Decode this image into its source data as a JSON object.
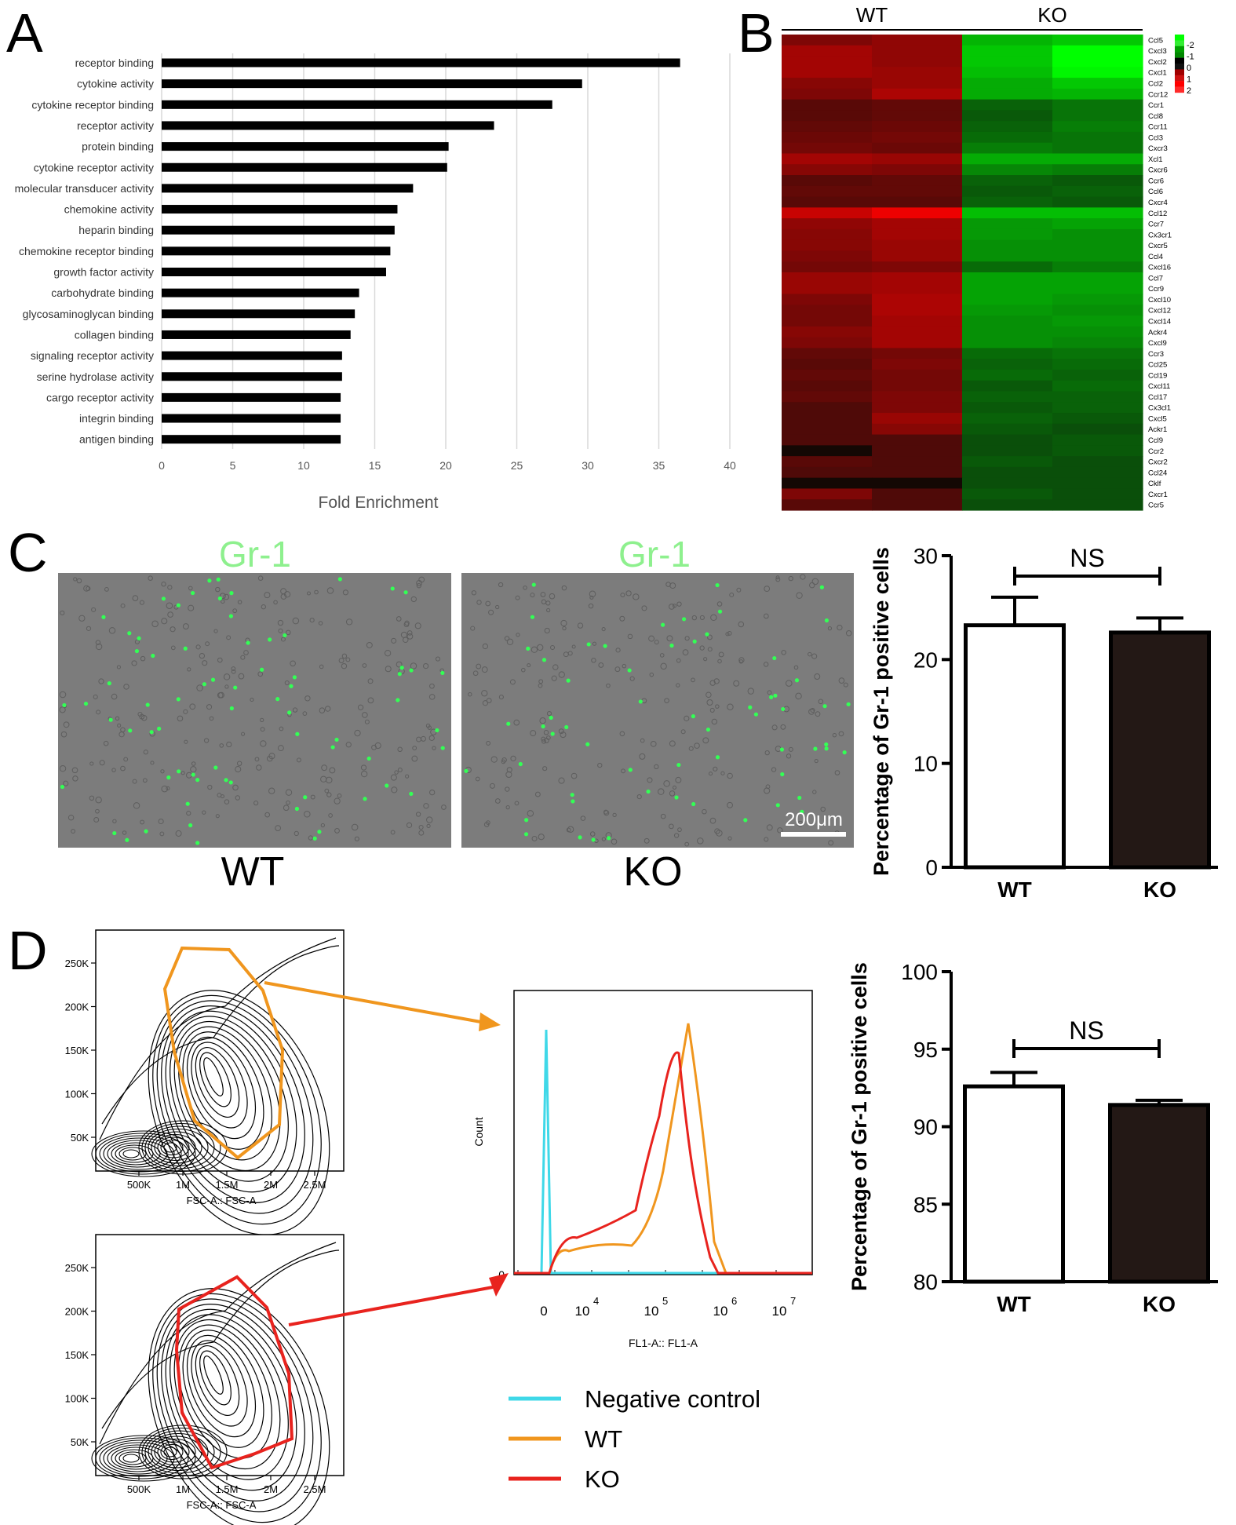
{
  "panel_labels": {
    "a": "A",
    "b": "B",
    "c": "C",
    "d": "D"
  },
  "colors": {
    "green_label": "#8ef08e",
    "micro_bg": "#7c7c7c",
    "bar_dark": "#231815",
    "neg_control": "#3fd8e8",
    "wt": "#f0961e",
    "ko": "#e8231e",
    "heat_low": "#00ff00",
    "heat_mid": "#000000",
    "heat_high": "#ff0000"
  },
  "chart_data": [
    {
      "id": "A",
      "type": "bar",
      "orientation": "horizontal",
      "categories": [
        "receptor binding",
        "cytokine activity",
        "cytokine receptor binding",
        "receptor activity",
        "protein binding",
        "cytokine receptor activity",
        "molecular transducer activity",
        "chemokine activity",
        "heparin binding",
        "chemokine receptor binding",
        "growth factor activity",
        "carbohydrate binding",
        "glycosaminoglycan binding",
        "collagen binding",
        "signaling receptor activity",
        "serine hydrolase activity",
        "cargo receptor activity",
        "integrin binding",
        "antigen binding"
      ],
      "values": [
        36.5,
        29.6,
        27.5,
        23.4,
        20.2,
        20.1,
        17.7,
        16.6,
        16.4,
        16.1,
        15.8,
        13.9,
        13.6,
        13.3,
        12.7,
        12.7,
        12.6,
        12.6,
        12.6
      ],
      "xlabel": "Fold Enrichment",
      "xlim": [
        0,
        40
      ],
      "xticks": [
        "0",
        "5",
        "10",
        "15",
        "20",
        "25",
        "30",
        "35",
        "40"
      ],
      "grid": true
    },
    {
      "id": "B",
      "type": "heatmap",
      "group_labels": [
        "WT",
        "KO"
      ],
      "rows": [
        "Ccl5",
        "Cxcl3",
        "Cxcl2",
        "Cxcl1",
        "Ccl2",
        "Ccr12",
        "Ccr1",
        "Ccl8",
        "Ccr11",
        "Ccl3",
        "Cxcr3",
        "Xcl1",
        "Cxcr6",
        "Ccr6",
        "Ccl6",
        "Cxcr4",
        "Ccl12",
        "Ccr7",
        "Cx3cr1",
        "Cxcr5",
        "Ccl4",
        "Cxcl16",
        "Ccl7",
        "Ccr9",
        "Cxcl10",
        "Cxcl12",
        "Cxcl14",
        "Ackr4",
        "Cxcl9",
        "Ccr3",
        "Ccl25",
        "Ccl19",
        "Cxcl11",
        "Ccl17",
        "Cx3cl1",
        "Cxcl5",
        "Ackr1",
        "Ccl9",
        "Ccr2",
        "Cxcr2",
        "Ccl24",
        "Cklf",
        "Cxcr1",
        "Ccr5"
      ],
      "legend_ticks": [
        "-2",
        "-1",
        "0",
        "1",
        "2"
      ],
      "values": [
        [
          0.6,
          0.8,
          -1.2,
          -1.4
        ],
        [
          1.0,
          0.8,
          -1.4,
          -2.0
        ],
        [
          1.0,
          0.8,
          -1.4,
          -2.0
        ],
        [
          1.0,
          0.9,
          -1.3,
          -1.9
        ],
        [
          0.7,
          0.9,
          -1.1,
          -1.4
        ],
        [
          0.6,
          1.1,
          -1.1,
          -1.2
        ],
        [
          0.2,
          0.3,
          -0.3,
          -0.5
        ],
        [
          0.2,
          0.3,
          -0.2,
          -0.5
        ],
        [
          0.3,
          0.4,
          -0.3,
          -0.6
        ],
        [
          0.4,
          0.5,
          -0.4,
          -0.5
        ],
        [
          0.5,
          0.4,
          -0.6,
          -0.5
        ],
        [
          1.0,
          0.9,
          -1.1,
          -1.1
        ],
        [
          0.7,
          0.6,
          -0.7,
          -0.6
        ],
        [
          0.2,
          0.3,
          -0.3,
          -0.2
        ],
        [
          0.3,
          0.3,
          -0.2,
          -0.3
        ],
        [
          0.2,
          0.2,
          -0.3,
          -0.2
        ],
        [
          1.4,
          1.8,
          -1.3,
          -1.3
        ],
        [
          0.8,
          1.0,
          -0.9,
          -1.0
        ],
        [
          0.7,
          1.0,
          -0.9,
          -0.8
        ],
        [
          0.7,
          0.9,
          -0.8,
          -0.8
        ],
        [
          0.6,
          0.9,
          -0.8,
          -0.8
        ],
        [
          0.5,
          0.6,
          -0.4,
          -0.6
        ],
        [
          0.9,
          1.0,
          -1.0,
          -1.0
        ],
        [
          0.9,
          1.0,
          -1.0,
          -1.0
        ],
        [
          0.6,
          1.1,
          -1.0,
          -0.9
        ],
        [
          0.5,
          1.1,
          -0.9,
          -0.8
        ],
        [
          0.5,
          1.0,
          -0.8,
          -0.9
        ],
        [
          0.7,
          1.0,
          -0.8,
          -0.8
        ],
        [
          0.6,
          1.0,
          -0.8,
          -0.7
        ],
        [
          0.3,
          0.5,
          -0.4,
          -0.5
        ],
        [
          0.2,
          0.6,
          -0.3,
          -0.4
        ],
        [
          0.3,
          0.5,
          -0.4,
          -0.3
        ],
        [
          0.2,
          0.5,
          -0.2,
          -0.4
        ],
        [
          0.3,
          0.6,
          -0.3,
          -0.3
        ],
        [
          0.1,
          0.6,
          -0.2,
          -0.3
        ],
        [
          0.1,
          0.9,
          -0.3,
          -0.2
        ],
        [
          0.1,
          0.7,
          -0.2,
          -0.1
        ],
        [
          0.1,
          0.1,
          -0.1,
          -0.2
        ],
        [
          0.0,
          0.1,
          -0.1,
          -0.2
        ],
        [
          0.2,
          0.1,
          -0.2,
          -0.1
        ],
        [
          0.1,
          0.1,
          -0.1,
          -0.1
        ],
        [
          0.0,
          0.0,
          -0.1,
          -0.1
        ],
        [
          0.6,
          0.1,
          -0.2,
          -0.1
        ],
        [
          0.2,
          0.1,
          -0.1,
          -0.1
        ]
      ]
    },
    {
      "id": "C-bar",
      "type": "bar",
      "categories": [
        "WT",
        "KO"
      ],
      "values": [
        23.3,
        22.6
      ],
      "errors": [
        2.7,
        1.4
      ],
      "ylabel": "Percentage of Gr-1 positive cells",
      "ylim": [
        0,
        30
      ],
      "yticks": [
        "0",
        "10",
        "20",
        "30"
      ],
      "annotation": "NS"
    },
    {
      "id": "D-bar",
      "type": "bar",
      "categories": [
        "WT",
        "KO"
      ],
      "values": [
        92.6,
        91.4
      ],
      "errors": [
        0.9,
        0.3
      ],
      "ylabel": "Percentage of Gr-1 positive cells",
      "ylim": [
        80,
        100
      ],
      "yticks": [
        "80",
        "85",
        "90",
        "95",
        "100"
      ],
      "annotation": "NS"
    },
    {
      "id": "D-hist",
      "type": "line",
      "xlabel": "FL1-A:: FL1-A",
      "ylabel": "Count",
      "y_zero_label": "0",
      "xtick_labels": [
        {
          "base": "0",
          "exp": ""
        },
        {
          "base": "10",
          "exp": "4"
        },
        {
          "base": "10",
          "exp": "5"
        },
        {
          "base": "10",
          "exp": "6"
        },
        {
          "base": "10",
          "exp": "7"
        }
      ],
      "series": [
        {
          "name": "Negative control",
          "color_key": "neg_control"
        },
        {
          "name": "WT",
          "color_key": "wt"
        },
        {
          "name": "KO",
          "color_key": "ko"
        }
      ]
    },
    {
      "id": "D-contour",
      "type": "scatter",
      "xlabel": "FSC-A:: FSC-A",
      "xticks": [
        "500K",
        "1M",
        "1.5M",
        "2M",
        "2.5M"
      ],
      "yticks": [
        "50K",
        "100K",
        "150K",
        "200K",
        "250K"
      ]
    }
  ],
  "micrographs": {
    "wt": {
      "title": "Gr-1",
      "caption": "WT"
    },
    "ko": {
      "title": "Gr-1",
      "caption": "KO",
      "scale_bar": "200μm"
    }
  }
}
